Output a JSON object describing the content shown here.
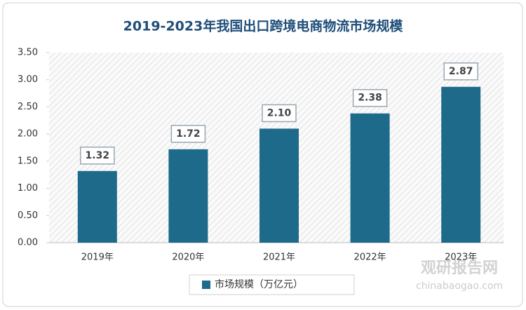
{
  "chart_data": {
    "type": "bar",
    "title": "2019-2023年我国出口跨境电商物流市场规模",
    "categories": [
      "2019年",
      "2020年",
      "2021年",
      "2022年",
      "2023年"
    ],
    "series": [
      {
        "name": "市场规模（万亿元）",
        "color": "#1d6a8b",
        "values": [
          1.32,
          1.72,
          2.1,
          2.38,
          2.87
        ],
        "value_labels": [
          "1.32",
          "1.72",
          "2.10",
          "2.38",
          "2.87"
        ]
      }
    ],
    "ylim": [
      0,
      3.5
    ],
    "yticks": [
      {
        "value": 0,
        "label": "0.00"
      },
      {
        "value": 0.5,
        "label": "0.50"
      },
      {
        "value": 1,
        "label": "1.00"
      },
      {
        "value": 1.5,
        "label": "1.50"
      },
      {
        "value": 2,
        "label": "2.00"
      },
      {
        "value": 2.5,
        "label": "2.50"
      },
      {
        "value": 3,
        "label": "3.00"
      },
      {
        "value": 3.5,
        "label": "3.50"
      }
    ],
    "watermark": {
      "brand": "观研报告网",
      "url": "chinabaogao.com"
    }
  }
}
